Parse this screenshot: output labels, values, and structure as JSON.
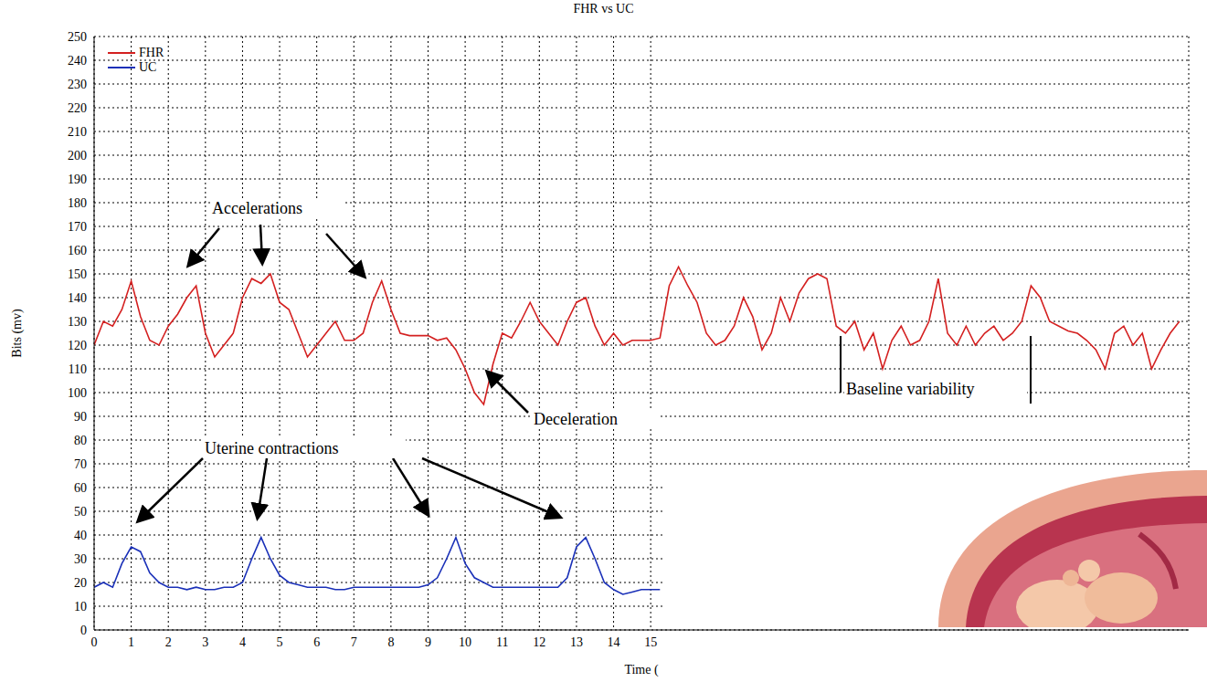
{
  "chart_data": {
    "type": "line",
    "title": "FHR vs UC",
    "x_label": "Time (",
    "y_label": "Bits (mv)",
    "x": [
      0,
      0.25,
      0.5,
      0.75,
      1,
      1.25,
      1.5,
      1.75,
      2,
      2.25,
      2.5,
      2.75,
      3,
      3.25,
      3.5,
      3.75,
      4,
      4.25,
      4.5,
      4.75,
      5,
      5.25,
      5.5,
      5.75,
      6,
      6.25,
      6.5,
      6.75,
      7,
      7.25,
      7.5,
      7.75,
      8,
      8.25,
      8.5,
      8.75,
      9,
      9.25,
      9.5,
      9.75,
      10,
      10.25,
      10.5,
      10.75,
      11,
      11.25,
      11.5,
      11.75,
      12,
      12.25,
      12.5,
      12.75,
      13,
      13.25,
      13.5,
      13.75,
      14,
      14.25,
      14.5,
      14.75,
      15,
      15.25,
      15.5,
      15.75,
      16,
      16.25,
      16.5,
      16.75,
      17,
      17.25,
      17.5,
      17.75,
      18,
      18.25,
      18.5,
      18.75,
      19,
      19.25,
      19.5,
      19.75,
      20,
      20.25,
      20.5,
      20.75,
      21,
      21.25,
      21.5,
      21.75,
      22,
      22.25,
      22.5,
      22.75,
      23,
      23.25,
      23.5,
      23.75,
      24,
      24.25,
      24.5,
      24.75,
      25,
      25.25,
      25.5,
      25.75,
      26,
      26.25,
      26.5,
      26.75,
      27,
      27.25,
      27.5,
      27.75,
      28,
      28.25,
      28.5,
      28.75,
      29,
      29.25
    ],
    "series": [
      {
        "name": "FHR",
        "color": "#d42020",
        "values": [
          120,
          130,
          128,
          135,
          147,
          132,
          122,
          120,
          128,
          133,
          140,
          145,
          125,
          115,
          120,
          125,
          140,
          148,
          146,
          150,
          138,
          135,
          125,
          115,
          120,
          125,
          130,
          122,
          122,
          125,
          138,
          147,
          135,
          125,
          124,
          124,
          124,
          122,
          123,
          118,
          110,
          100,
          95,
          112,
          125,
          123,
          130,
          138,
          130,
          125,
          120,
          130,
          138,
          140,
          128,
          120,
          125,
          120,
          122,
          122,
          122,
          123,
          145,
          153,
          145,
          138,
          125,
          120,
          122,
          128,
          140,
          132,
          118,
          125,
          140,
          130,
          142,
          148,
          150,
          148,
          128,
          125,
          130,
          118,
          125,
          110,
          122,
          128,
          120,
          122,
          130,
          148,
          125,
          120,
          128,
          120,
          125,
          128,
          122,
          125,
          130,
          145,
          140,
          130,
          128,
          126,
          125,
          122,
          118,
          110,
          125,
          128,
          120,
          125,
          110,
          118,
          125,
          130
        ]
      },
      {
        "name": "UC",
        "color": "#1a30b8",
        "values": [
          18,
          20,
          18,
          28,
          35,
          33,
          24,
          20,
          18,
          18,
          17,
          18,
          17,
          17,
          18,
          18,
          20,
          30,
          39,
          30,
          23,
          20,
          19,
          18,
          18,
          18,
          17,
          17,
          18,
          18,
          18,
          18,
          18,
          18,
          18,
          18,
          19,
          22,
          30,
          39,
          28,
          22,
          20,
          18,
          18,
          18,
          18,
          18,
          18,
          18,
          18,
          22,
          35,
          39,
          30,
          20,
          17,
          15,
          16,
          17,
          17,
          17,
          null,
          null,
          null,
          null,
          null,
          null,
          null,
          null,
          null,
          null,
          null,
          null,
          null,
          null,
          null,
          null,
          null,
          null,
          null,
          null,
          null,
          null,
          null,
          null,
          null,
          null,
          null,
          null,
          null,
          null,
          null,
          null,
          null,
          null,
          null,
          null,
          null,
          null,
          null,
          null,
          null,
          null,
          null,
          null,
          null,
          null,
          null,
          null,
          null,
          null,
          null,
          null,
          null,
          null,
          null,
          null
        ]
      }
    ],
    "xlim": [
      0,
      29.5
    ],
    "xticks": [
      0,
      1,
      2,
      3,
      4,
      5,
      6,
      7,
      8,
      9,
      10,
      11,
      12,
      13,
      14,
      15
    ],
    "ylim": [
      0,
      250
    ],
    "yticks": [
      0,
      10,
      20,
      30,
      40,
      50,
      60,
      70,
      80,
      90,
      100,
      110,
      120,
      130,
      140,
      150,
      160,
      170,
      180,
      190,
      200,
      210,
      220,
      230,
      240,
      250
    ],
    "grid": true,
    "legend": "upper left",
    "annotations": [
      "Accelerations",
      "Deceleration",
      "Uterine contractions",
      "Baseline variability"
    ]
  }
}
